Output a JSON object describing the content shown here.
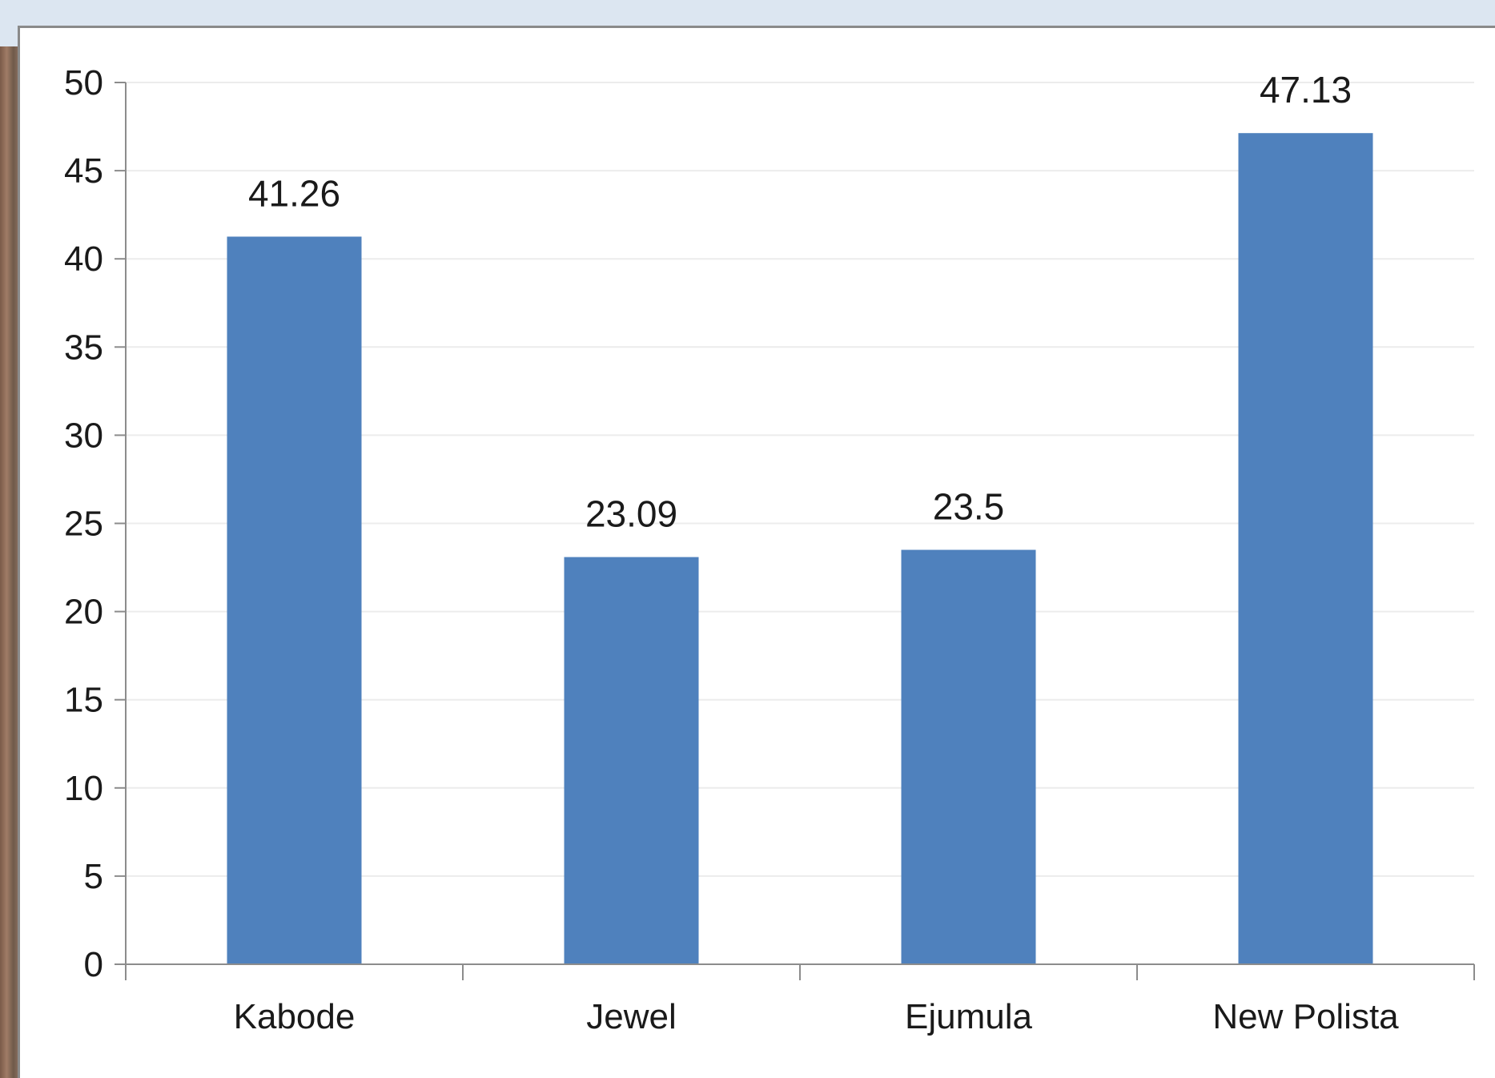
{
  "colors": {
    "bar": "#4f81bd",
    "axis": "#8c8c8c",
    "grid": "#ececec",
    "text": "#1a1a1a"
  },
  "chart_data": {
    "type": "bar",
    "categories": [
      "Kabode",
      "Jewel",
      "Ejumula",
      "New Polista"
    ],
    "values": [
      41.26,
      23.09,
      23.5,
      47.13
    ],
    "data_labels": [
      "41.26",
      "23.09",
      "23.5",
      "47.13"
    ],
    "title": "",
    "xlabel": "",
    "ylabel": "",
    "ylim": [
      0,
      50
    ],
    "yticks": [
      0,
      5,
      10,
      15,
      20,
      25,
      30,
      35,
      40,
      45,
      50
    ],
    "grid": true,
    "legend": "none"
  }
}
